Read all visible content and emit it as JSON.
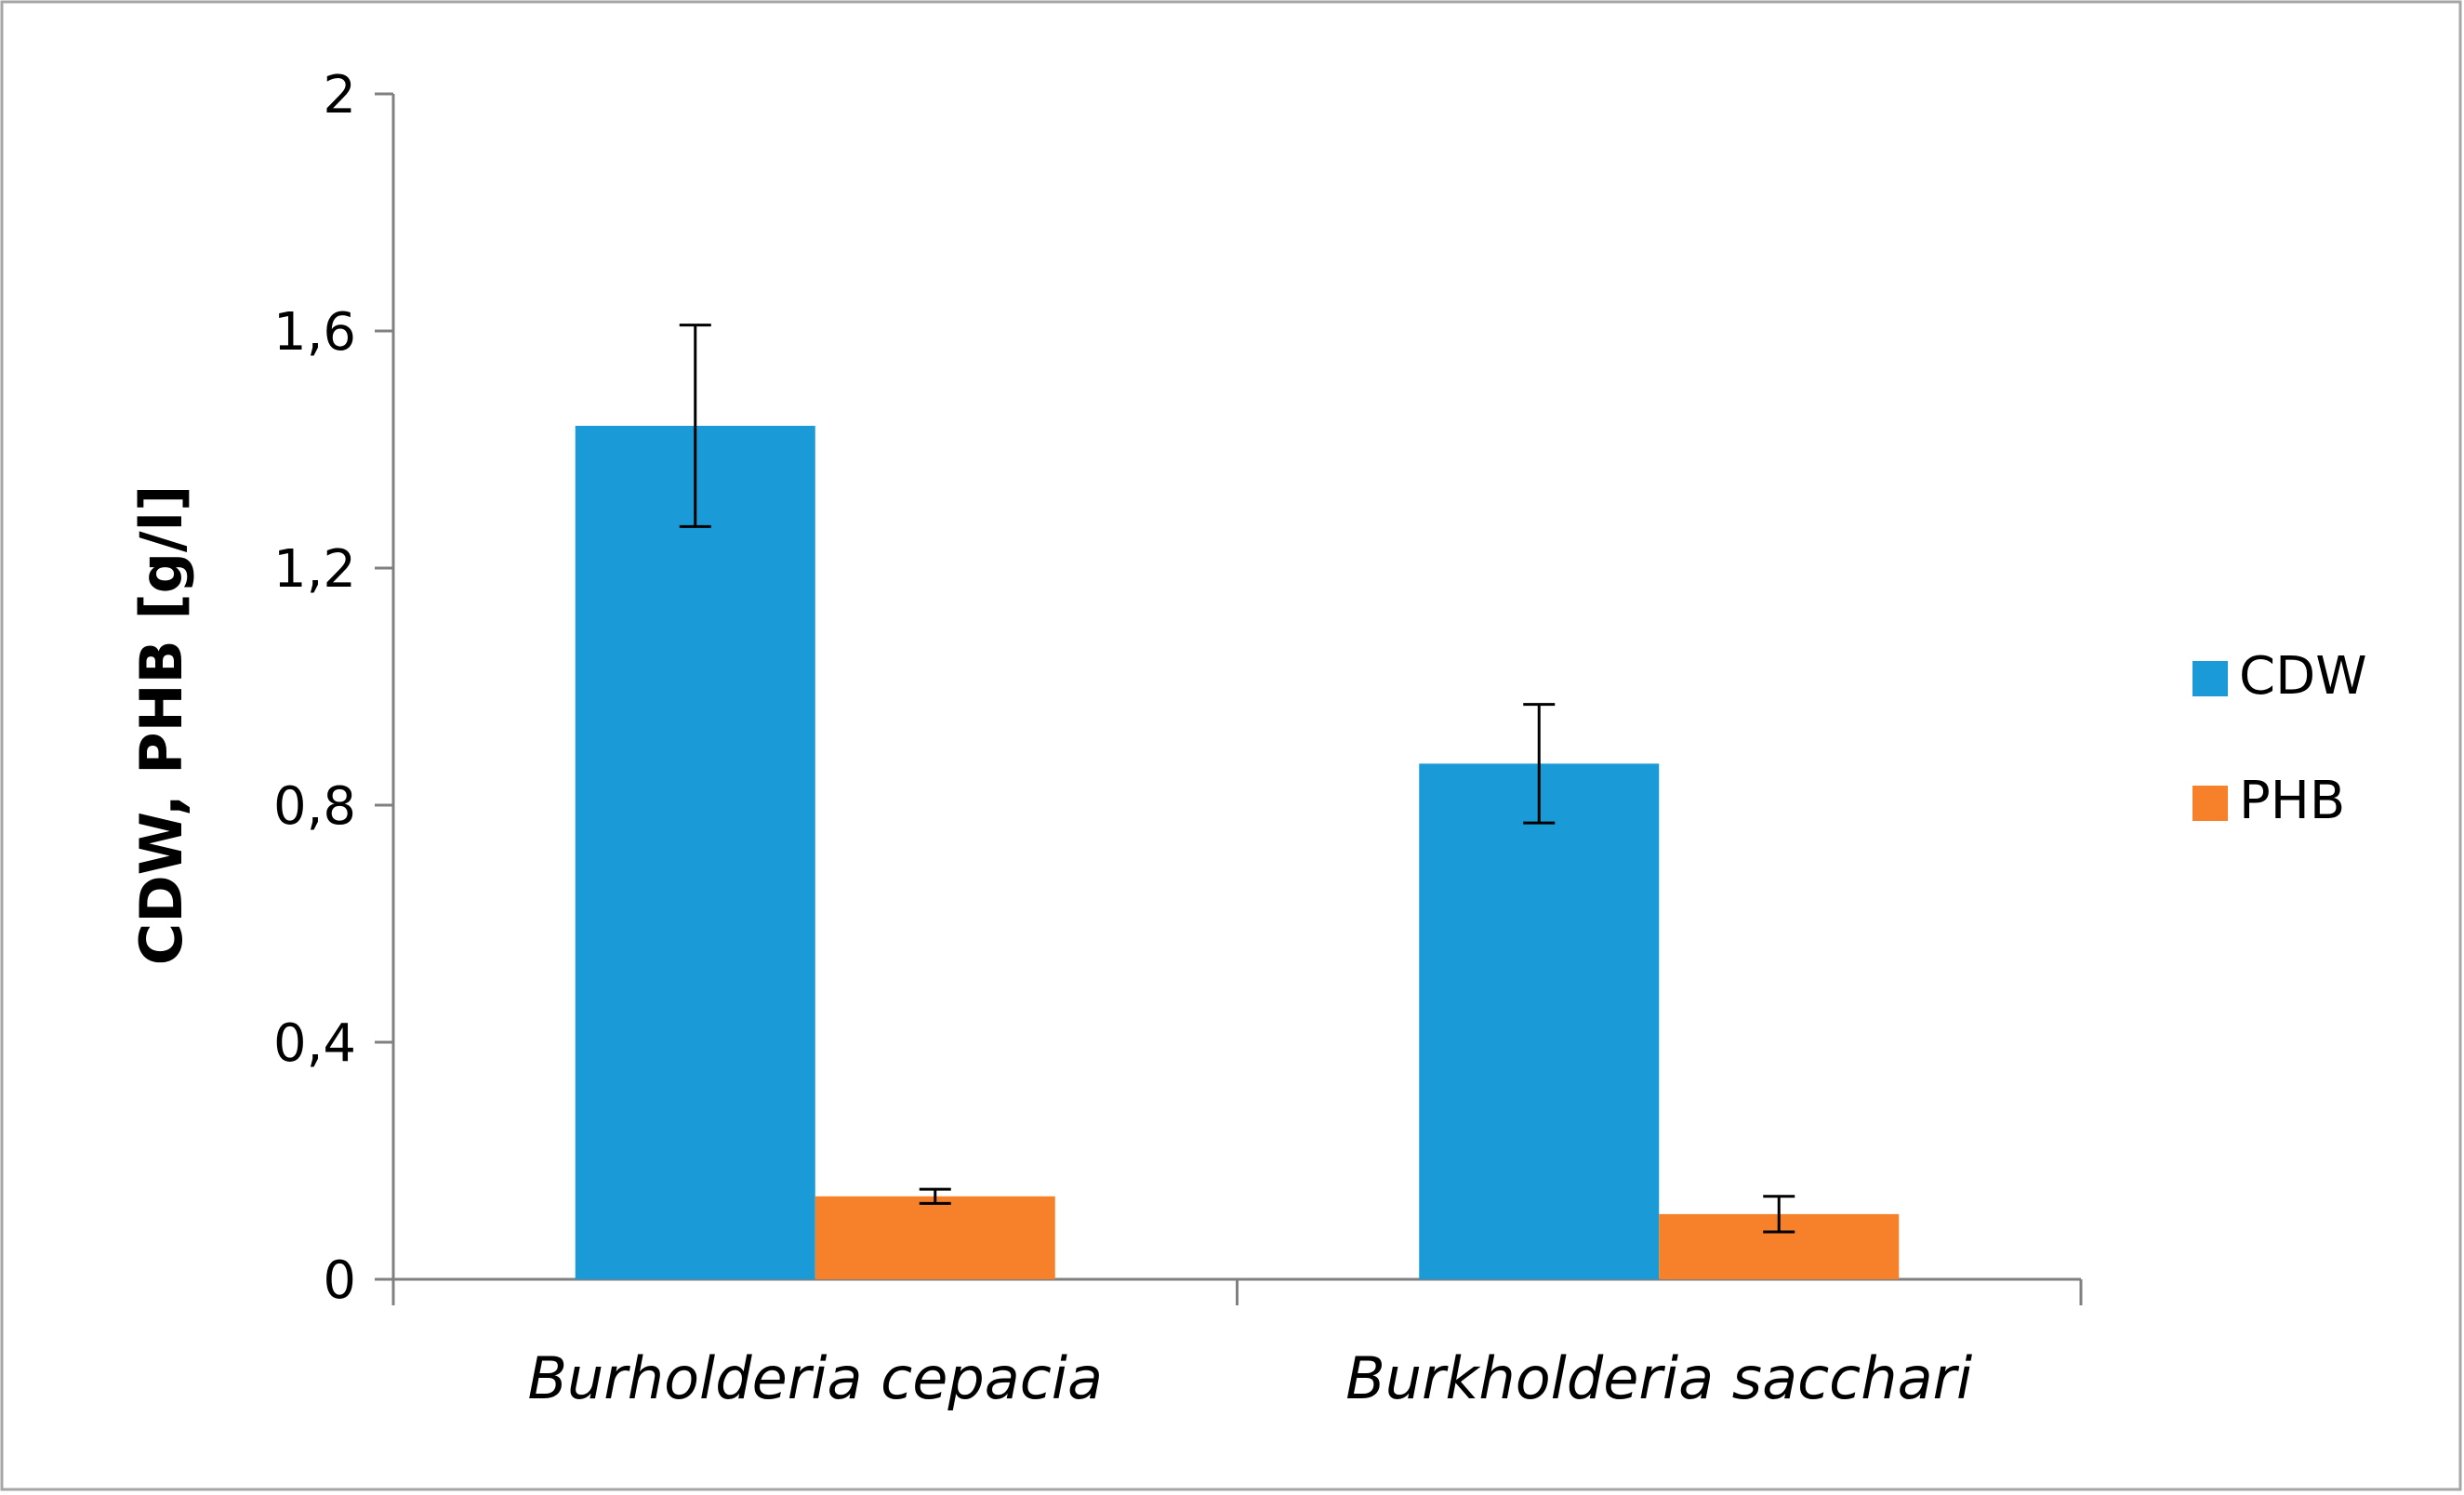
{
  "chart_data": {
    "type": "bar",
    "title": "",
    "xlabel": "",
    "ylabel": "CDW, PHB [g/l]",
    "ylim": [
      0,
      2
    ],
    "yticks": [
      0,
      0.4,
      0.8,
      1.2,
      1.6,
      2
    ],
    "ytick_labels": [
      "0",
      "0,4",
      "0,8",
      "1,2",
      "1,6",
      "2"
    ],
    "categories": [
      "Burholderia cepacia",
      "Burkholderia sacchari"
    ],
    "series": [
      {
        "name": "CDW",
        "color": "#1a9bd7",
        "values": [
          1.44,
          0.87
        ],
        "errors": [
          0.17,
          0.1
        ]
      },
      {
        "name": "PHB",
        "color": "#f7812a",
        "values": [
          0.14,
          0.11
        ],
        "errors": [
          0.012,
          0.03
        ]
      }
    ],
    "grid": false,
    "legend_position": "right",
    "error_bars": true
  },
  "colors": {
    "frame": "#a6a6a6",
    "axis": "#808080",
    "text": "#000000"
  }
}
